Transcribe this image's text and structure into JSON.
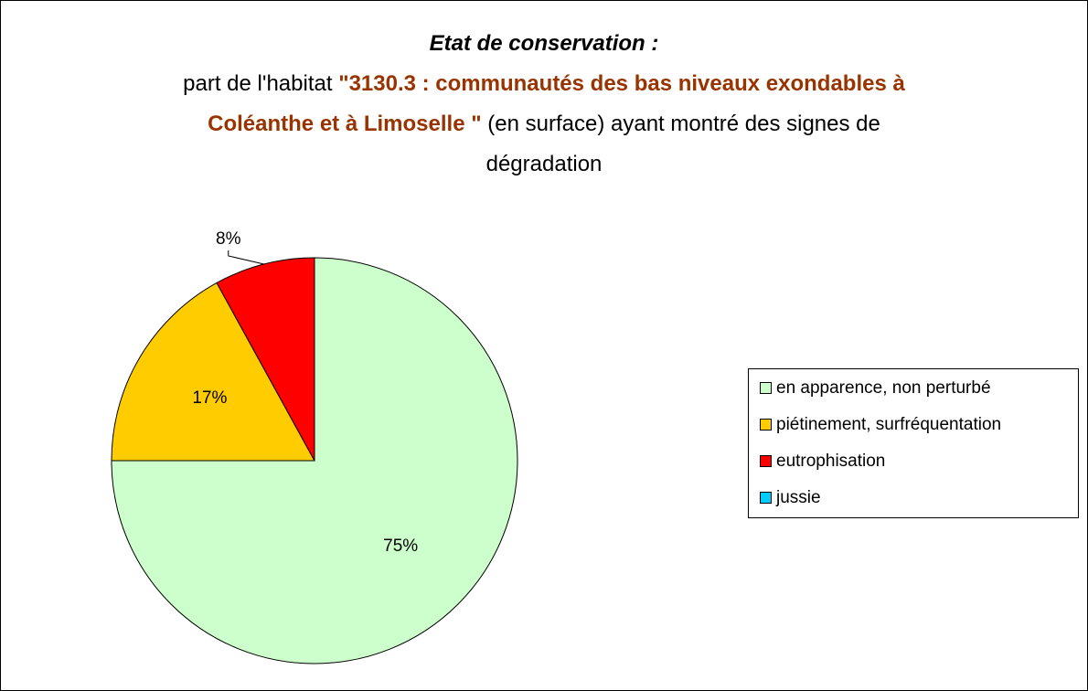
{
  "chart_data": {
    "type": "pie",
    "title": [
      "Etat de conservation :",
      "part de l'habitat",
      "\"3130.3 : communautés des bas niveaux exondables à Coléanthe et à Limoselle \"",
      "(en surface) ayant montré des signes de dégradation"
    ],
    "categories": [
      "en apparence, non perturbé",
      "piétinement, surfréquentation",
      "eutrophisation",
      "jussie"
    ],
    "values": [
      75,
      17,
      8,
      0
    ],
    "value_labels": [
      "75%",
      "17%",
      "8%",
      null
    ],
    "colors": [
      "#ccffcc",
      "#ffcc00",
      "#ff0000",
      "#00ccff"
    ],
    "legend": "right"
  }
}
